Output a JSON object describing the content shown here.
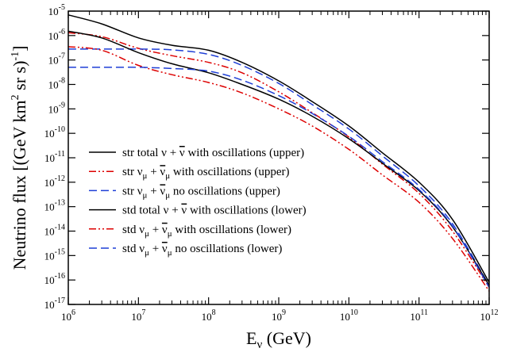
{
  "chart_data": {
    "type": "line",
    "title": "",
    "xlabel": {
      "main": "E",
      "sub": "ν",
      "rest": " (GeV)"
    },
    "ylabel": {
      "pre": "Neutrino flux [(GeV km",
      "sup1": "2",
      "mid": " sr s)",
      "sup2": "-1",
      "post": "]"
    },
    "xscale": "log",
    "yscale": "log",
    "xlim": [
      1000000.0,
      1000000000000.0
    ],
    "ylim": [
      1e-17,
      1e-05
    ],
    "x_ticks": [
      {
        "value": 1000000.0,
        "base": "10",
        "exp": "6"
      },
      {
        "value": 10000000.0,
        "base": "10",
        "exp": "7"
      },
      {
        "value": 100000000.0,
        "base": "10",
        "exp": "8"
      },
      {
        "value": 1000000000.0,
        "base": "10",
        "exp": "9"
      },
      {
        "value": 10000000000.0,
        "base": "10",
        "exp": "10"
      },
      {
        "value": 100000000000.0,
        "base": "10",
        "exp": "11"
      },
      {
        "value": 1000000000000.0,
        "base": "10",
        "exp": "12"
      }
    ],
    "y_ticks": [
      {
        "value": 1e-17,
        "base": "10",
        "exp": "-17"
      },
      {
        "value": 1e-16,
        "base": "10",
        "exp": "-16"
      },
      {
        "value": 1e-15,
        "base": "10",
        "exp": "-15"
      },
      {
        "value": 1e-14,
        "base": "10",
        "exp": "-14"
      },
      {
        "value": 1e-13,
        "base": "10",
        "exp": "-13"
      },
      {
        "value": 1e-12,
        "base": "10",
        "exp": "-12"
      },
      {
        "value": 1e-11,
        "base": "10",
        "exp": "-11"
      },
      {
        "value": 1e-10,
        "base": "10",
        "exp": "-10"
      },
      {
        "value": 1e-09,
        "base": "10",
        "exp": "-9"
      },
      {
        "value": 1e-08,
        "base": "10",
        "exp": "-8"
      },
      {
        "value": 1e-07,
        "base": "10",
        "exp": "-7"
      },
      {
        "value": 1e-06,
        "base": "10",
        "exp": "-6"
      },
      {
        "value": 1e-05,
        "base": "10",
        "exp": "-5"
      }
    ],
    "grid": false,
    "legend_position": "bottom-left",
    "series": [
      {
        "name": "str total ν + ν̄ with oscillations (upper)",
        "legend": [
          {
            "t": "str total ν + "
          },
          {
            "t": "ν",
            "bar": true
          },
          {
            "t": " with oscillations (upper)"
          }
        ],
        "color": "#000000",
        "dash": "solid",
        "x": [
          1000000.0,
          3000000.0,
          10000000.0,
          30000000.0,
          100000000.0,
          300000000.0,
          1000000000.0,
          3000000000.0,
          10000000000.0,
          30000000000.0,
          100000000000.0,
          300000000000.0,
          1000000000000.0
        ],
        "y": [
          7e-06,
          3e-06,
          8e-07,
          4e-07,
          2.5e-07,
          8e-08,
          1.4e-08,
          2e-09,
          2e-10,
          1.6e-11,
          1e-12,
          3e-14,
          8e-17
        ]
      },
      {
        "name": "str νμ + ν̄μ with oscillations (upper)",
        "legend": [
          {
            "t": "str ν"
          },
          {
            "t": "μ",
            "sub": true
          },
          {
            "t": " + "
          },
          {
            "t": "ν",
            "bar": true
          },
          {
            "t": "μ",
            "sub": true
          },
          {
            "t": " with oscillations (upper)"
          }
        ],
        "color": "#dd0000",
        "dash": "dashdotdot",
        "x": [
          1000000.0,
          3000000.0,
          10000000.0,
          30000000.0,
          100000000.0,
          300000000.0,
          1000000000.0,
          3000000000.0,
          10000000000.0,
          30000000000.0,
          100000000000.0,
          300000000000.0,
          1000000000000.0
        ],
        "y": [
          1.3e-06,
          9e-07,
          3e-07,
          1.5e-07,
          8e-08,
          3e-08,
          5e-09,
          7e-10,
          7e-11,
          5.5e-12,
          3.5e-13,
          1e-14,
          5e-17
        ]
      },
      {
        "name": "str νμ + ν̄μ no oscillations (upper)",
        "legend": [
          {
            "t": "str ν"
          },
          {
            "t": "μ",
            "sub": true
          },
          {
            "t": " + "
          },
          {
            "t": "ν",
            "bar": true
          },
          {
            "t": "μ",
            "sub": true
          },
          {
            "t": " no oscillations (upper)"
          }
        ],
        "color": "#1f3fd6",
        "dash": "dashed",
        "x": [
          1000000.0,
          3000000.0,
          10000000.0,
          30000000.0,
          100000000.0,
          300000000.0,
          1000000000.0,
          3000000000.0,
          10000000000.0,
          30000000000.0,
          100000000000.0,
          300000000000.0,
          1000000000000.0
        ],
        "y": [
          2.8e-07,
          2.8e-07,
          2.8e-07,
          2.6e-07,
          1.7e-07,
          6e-08,
          1.1e-08,
          1.5e-09,
          1.5e-10,
          1.2e-11,
          7e-13,
          2e-14,
          6e-17
        ]
      },
      {
        "name": "std total ν + ν̄ with oscillations (lower)",
        "legend": [
          {
            "t": "std total ν + "
          },
          {
            "t": "ν",
            "bar": true
          },
          {
            "t": " with oscillations (lower)"
          }
        ],
        "color": "#000000",
        "dash": "solid",
        "x": [
          1000000.0,
          3000000.0,
          10000000.0,
          30000000.0,
          100000000.0,
          300000000.0,
          1000000000.0,
          3000000000.0,
          10000000000.0,
          30000000000.0,
          100000000000.0,
          300000000000.0,
          1000000000000.0
        ],
        "y": [
          1.5e-06,
          8e-07,
          2e-07,
          7e-08,
          3e-08,
          1e-08,
          2.5e-09,
          5e-10,
          6e-11,
          6e-12,
          4.5e-13,
          1.5e-14,
          6e-17
        ]
      },
      {
        "name": "std νμ + ν̄μ with oscillations (lower)",
        "legend": [
          {
            "t": "std ν"
          },
          {
            "t": "μ",
            "sub": true
          },
          {
            "t": " + "
          },
          {
            "t": "ν",
            "bar": true
          },
          {
            "t": "μ",
            "sub": true
          },
          {
            "t": " with oscillations (lower)"
          }
        ],
        "color": "#dd0000",
        "dash": "dashdotdot",
        "x": [
          1000000.0,
          3000000.0,
          10000000.0,
          30000000.0,
          100000000.0,
          300000000.0,
          1000000000.0,
          3000000000.0,
          10000000000.0,
          30000000000.0,
          100000000000.0,
          300000000000.0,
          1000000000000.0
        ],
        "y": [
          3.5e-07,
          2.5e-07,
          6e-08,
          2.5e-08,
          1.2e-08,
          4.5e-09,
          1e-09,
          2e-10,
          2.2e-11,
          2e-12,
          1.5e-13,
          5e-15,
          3.5e-17
        ]
      },
      {
        "name": "std νμ + ν̄μ no oscillations (lower)",
        "legend": [
          {
            "t": "std ν"
          },
          {
            "t": "μ",
            "sub": true
          },
          {
            "t": " + "
          },
          {
            "t": "ν",
            "bar": true
          },
          {
            "t": "μ",
            "sub": true
          },
          {
            "t": " no oscillations (lower)"
          }
        ],
        "color": "#1f3fd6",
        "dash": "dashed",
        "x": [
          1000000.0,
          3000000.0,
          10000000.0,
          30000000.0,
          100000000.0,
          300000000.0,
          1000000000.0,
          3000000000.0,
          10000000000.0,
          30000000000.0,
          100000000000.0,
          300000000000.0,
          1000000000000.0
        ],
        "y": [
          5e-08,
          5e-08,
          5e-08,
          4.5e-08,
          3.5e-08,
          1.5e-08,
          3.5e-09,
          6.5e-10,
          7.5e-11,
          7e-12,
          5e-13,
          1.6e-14,
          5e-17
        ]
      }
    ]
  }
}
